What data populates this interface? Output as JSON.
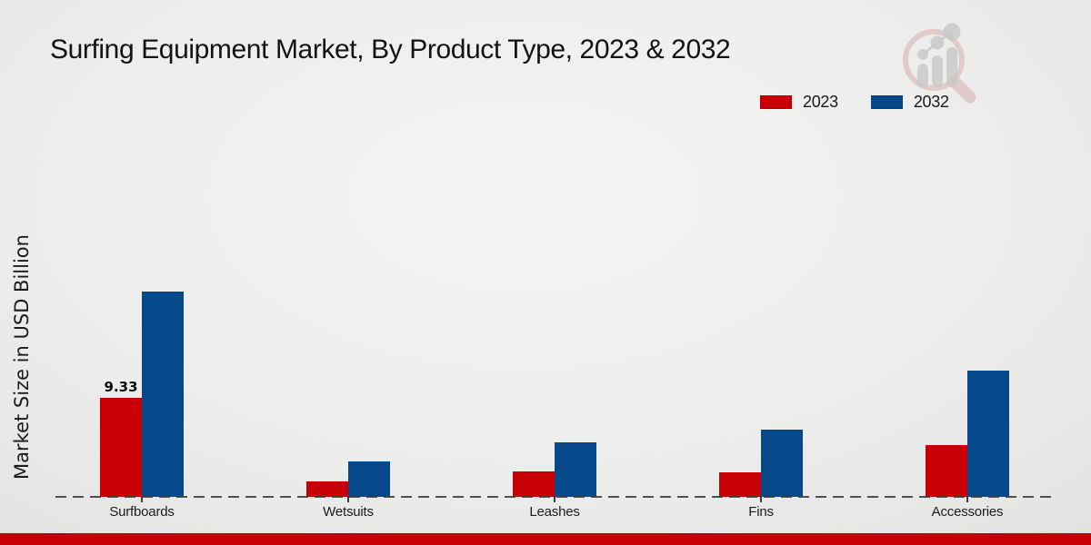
{
  "title": "Surfing Equipment Market, By Product Type, 2023 & 2032",
  "ylabel": "Market Size in USD Billion",
  "legend": [
    {
      "label": "2023",
      "color": "#c80005"
    },
    {
      "label": "2032",
      "color": "#05498a"
    }
  ],
  "colors": {
    "red_2023": "#c80005",
    "blue_2032": "#05498a",
    "footer_bar": "#c80005",
    "baseline_dash": "#3b3b3b"
  },
  "icons": {
    "logo": "magnifier-bar-chart-watermark-icon"
  },
  "chart_data": {
    "type": "bar",
    "categories": [
      "Surfboards",
      "Wetsuits",
      "Leashes",
      "Fins",
      "Accessories"
    ],
    "series": [
      {
        "name": "2023",
        "color": "#c80005",
        "values": [
          9.33,
          1.45,
          2.4,
          2.35,
          4.9
        ]
      },
      {
        "name": "2032",
        "color": "#05498a",
        "values": [
          19.37,
          3.35,
          5.15,
          6.35,
          11.9
        ]
      }
    ],
    "title": "Surfing Equipment Market, By Product Type, 2023 & 2032",
    "xlabel": "",
    "ylabel": "Market Size in USD Billion",
    "ylim": [
      0,
      22
    ],
    "grid": false,
    "y_axis_ticks_visible": false,
    "baseline_style": "dashed",
    "legend_position": "top-right",
    "data_labels": [
      {
        "category": "Surfboards",
        "series": "2023",
        "text": "9.33"
      }
    ]
  }
}
